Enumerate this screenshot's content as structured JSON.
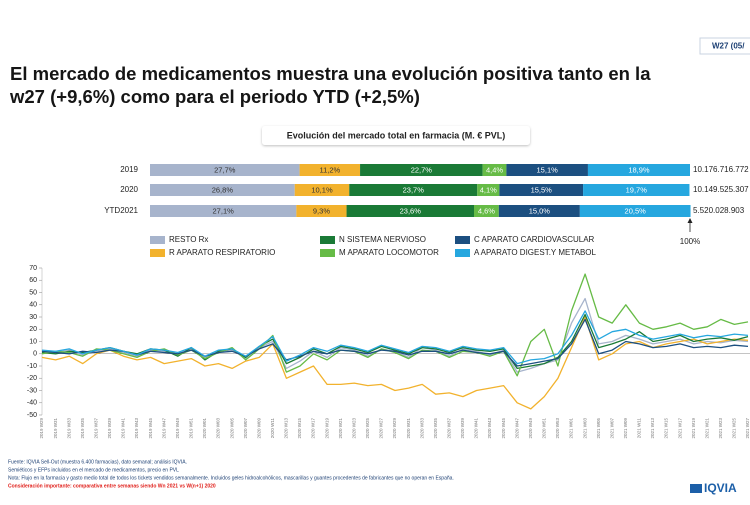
{
  "header": {
    "badge": "W27 (05/",
    "title_lines": [
      "El mercado de medicamentos muestra una evolución positiva tanto en la",
      "w27 (+9,6%) como para el periodo YTD (+2,5%)"
    ]
  },
  "chart_data": [
    {
      "type": "bar",
      "orientation": "horizontal",
      "stacked": true,
      "title": "Evolución del mercado total en farmacia (M. € PVL)",
      "categories": [
        "2019",
        "2020",
        "YTD2021"
      ],
      "xlim": [
        0,
        100
      ],
      "series": [
        {
          "name": "RESTO Rx",
          "color": "#a7b4cc",
          "values": [
            27.7,
            26.8,
            27.1
          ],
          "value_labels": [
            "27,7%",
            "26,8%",
            "27,1%"
          ]
        },
        {
          "name": "R APARATO RESPIRATORIO",
          "color": "#f2b22d",
          "values": [
            11.2,
            10.1,
            9.3
          ],
          "value_labels": [
            "11,2%",
            "10,1%",
            "9,3%"
          ]
        },
        {
          "name": "N SISTEMA NERVIOSO",
          "color": "#1a7a36",
          "values": [
            22.7,
            23.7,
            23.6
          ],
          "value_labels": [
            "22,7%",
            "23,7%",
            "23,6%"
          ]
        },
        {
          "name": "M APARATO LOCOMOTOR",
          "color": "#66bb46",
          "values": [
            4.4,
            4.1,
            4.6
          ],
          "value_labels": [
            "4,4%",
            "4,1%",
            "4,6%"
          ]
        },
        {
          "name": "C APARATO CARDIOVASCULAR",
          "color": "#1c4f80",
          "values": [
            15.1,
            15.5,
            15.0
          ],
          "value_labels": [
            "15,1%",
            "15,5%",
            "15,0%"
          ]
        },
        {
          "name": "A APARATO DIGEST.Y METABOL",
          "color": "#26a7df",
          "values": [
            18.9,
            19.7,
            20.5
          ],
          "value_labels": [
            "18,9%",
            "19,7%",
            "20,5%"
          ]
        }
      ],
      "totals": [
        "10.176.716.772",
        "10.149.525.307",
        "5.520.028.903"
      ],
      "annotation": "100%"
    },
    {
      "type": "line",
      "categories": [
        "2019 W29",
        "2019 W31",
        "2019 W33",
        "2019 W35",
        "2019 W37",
        "2019 W39",
        "2019 W41",
        "2019 W43",
        "2019 W45",
        "2019 W47",
        "2019 W49",
        "2019 W51",
        "2020 W01",
        "2020 W03",
        "2020 W05",
        "2020 W07",
        "2020 W09",
        "2020 W11",
        "2020 W13",
        "2020 W15",
        "2020 W17",
        "2020 W19",
        "2020 W21",
        "2020 W23",
        "2020 W25",
        "2020 W27",
        "2020 W29",
        "2020 W31",
        "2020 W33",
        "2020 W35",
        "2020 W37",
        "2020 W39",
        "2020 W41",
        "2020 W43",
        "2020 W45",
        "2020 W47",
        "2020 W49",
        "2020 W51",
        "2020 W53",
        "2021 W01",
        "2021 W03",
        "2021 W05",
        "2021 W07",
        "2021 W09",
        "2021 W11",
        "2021 W13",
        "2021 W15",
        "2021 W17",
        "2021 W19",
        "2021 W21",
        "2021 W23",
        "2021 W25",
        "2021 W27"
      ],
      "ylim": [
        -50,
        70
      ],
      "yticks": [
        -50,
        -40,
        -30,
        -20,
        -10,
        0,
        10,
        20,
        30,
        40,
        50,
        60,
        70
      ],
      "grid": false,
      "series": [
        {
          "color": "#a7b4cc",
          "values": [
            2,
            1,
            3,
            -1,
            2,
            4,
            1,
            -2,
            3,
            2,
            0,
            4,
            -3,
            2,
            3,
            -4,
            5,
            10,
            -12,
            -6,
            2,
            -3,
            5,
            3,
            -2,
            4,
            2,
            -3,
            5,
            3,
            -2,
            4,
            2,
            -1,
            3,
            -15,
            -12,
            -8,
            -5,
            25,
            45,
            8,
            10,
            15,
            12,
            8,
            10,
            12,
            8,
            10,
            9,
            11,
            10
          ]
        },
        {
          "color": "#f2b22d",
          "values": [
            -3,
            -5,
            -2,
            -8,
            0,
            3,
            -2,
            -5,
            -3,
            -8,
            -6,
            -4,
            -10,
            -8,
            -12,
            -6,
            -3,
            8,
            -20,
            -15,
            -10,
            -25,
            -25,
            -24,
            -26,
            -25,
            -30,
            -28,
            -25,
            -33,
            -32,
            -35,
            -30,
            -28,
            -26,
            -40,
            -45,
            -35,
            -20,
            5,
            30,
            -5,
            0,
            8,
            10,
            5,
            8,
            10,
            12,
            8,
            10,
            12,
            11
          ]
        },
        {
          "color": "#1a7a36",
          "values": [
            1,
            0,
            2,
            1,
            3,
            5,
            2,
            0,
            4,
            3,
            -2,
            5,
            -5,
            2,
            4,
            -3,
            6,
            12,
            -8,
            -3,
            4,
            0,
            6,
            4,
            1,
            6,
            3,
            0,
            5,
            4,
            1,
            5,
            3,
            2,
            4,
            -12,
            -10,
            -8,
            -3,
            10,
            32,
            5,
            8,
            12,
            18,
            10,
            12,
            15,
            10,
            12,
            13,
            11,
            14
          ]
        },
        {
          "color": "#66bb46",
          "values": [
            0,
            2,
            1,
            -2,
            4,
            3,
            0,
            -3,
            2,
            4,
            -1,
            3,
            -4,
            1,
            5,
            -5,
            4,
            15,
            -15,
            -10,
            0,
            -5,
            3,
            2,
            -3,
            4,
            1,
            -4,
            3,
            2,
            -3,
            2,
            1,
            -2,
            2,
            -18,
            10,
            20,
            -10,
            35,
            65,
            30,
            25,
            40,
            25,
            20,
            22,
            25,
            20,
            22,
            28,
            24,
            26
          ]
        },
        {
          "color": "#1c4f80",
          "values": [
            2,
            1,
            0,
            2,
            1,
            3,
            2,
            -1,
            2,
            1,
            0,
            3,
            -2,
            1,
            2,
            -2,
            4,
            8,
            -5,
            -2,
            2,
            0,
            3,
            2,
            0,
            3,
            2,
            -1,
            2,
            2,
            0,
            3,
            1,
            0,
            2,
            -10,
            -8,
            -6,
            -4,
            8,
            28,
            0,
            3,
            10,
            8,
            5,
            6,
            8,
            5,
            6,
            5,
            7,
            6
          ]
        },
        {
          "color": "#26a7df",
          "values": [
            3,
            2,
            4,
            0,
            3,
            5,
            2,
            -1,
            4,
            3,
            1,
            5,
            -2,
            3,
            4,
            -2,
            6,
            14,
            -6,
            -1,
            5,
            2,
            7,
            5,
            2,
            7,
            4,
            1,
            6,
            5,
            2,
            6,
            4,
            3,
            5,
            -8,
            -5,
            -4,
            0,
            15,
            35,
            12,
            18,
            20,
            15,
            12,
            14,
            16,
            13,
            15,
            14,
            16,
            15
          ]
        }
      ]
    }
  ],
  "footer": {
    "source": "Fuente: IQVIA Sell-Out (muestra 6.400 farmacias), dato semanal; análisis IQVIA.",
    "scope": "Semiéticos y EFPs incluidos en el mercado de medicamentos, precio en PVL",
    "note": "Nota: Flujo en la farmacia y gasto medio total de todos los tickets vendidos semanalmente. Incluidos geles hidroalcohólicos, mascarillas y guantes procedentes de fabricantes que no operan en España.",
    "warning": "Consideración importante: comparativa entre semanas siendo Wn 2021 vs W(n+1) 2020",
    "logo": "IQVIA"
  }
}
